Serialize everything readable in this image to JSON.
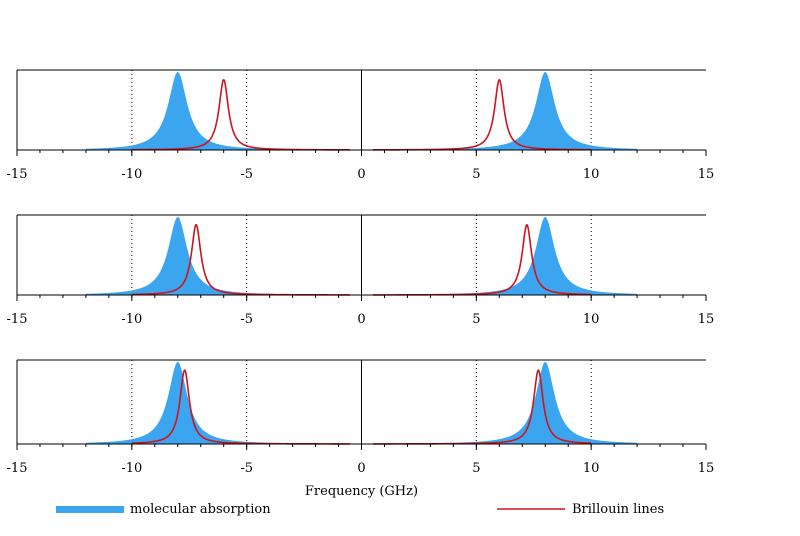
{
  "chart_data": {
    "type": "area",
    "xlabel": "Frequency (GHz)",
    "xlim": [
      -15,
      15
    ],
    "xticks": [
      -15,
      -10,
      -5,
      0,
      5,
      10,
      15
    ],
    "dotted_gridlines": [
      -10,
      -5,
      5,
      10
    ],
    "solid_gridlines": [
      0
    ],
    "legend": {
      "placement": "bottom",
      "entries": [
        {
          "label": "molecular  absorption",
          "color": "#3ba5f0",
          "style": "fill"
        },
        {
          "label": "Brillouin lines",
          "color": "#d0141e",
          "style": "line"
        }
      ]
    },
    "colors": {
      "absorption": "#3ba5f0",
      "brillouin": "#d0141e"
    },
    "panels": [
      {
        "molecular_absorption": {
          "centers": [
            -8,
            8
          ],
          "hwhm": 0.5,
          "x_range": [
            -12,
            12
          ],
          "peak": 1.0
        },
        "brillouin_lines": {
          "centers": [
            -6,
            6
          ],
          "hwhm": 0.25,
          "peak": 0.9
        }
      },
      {
        "molecular_absorption": {
          "centers": [
            -8,
            8
          ],
          "hwhm": 0.5,
          "x_range": [
            -12,
            12
          ],
          "peak": 1.0
        },
        "brillouin_lines": {
          "centers": [
            -7.2,
            7.2
          ],
          "hwhm": 0.25,
          "peak": 0.9
        }
      },
      {
        "molecular_absorption": {
          "centers": [
            -8,
            8
          ],
          "hwhm": 0.5,
          "x_range": [
            -12,
            12
          ],
          "peak": 1.0
        },
        "brillouin_lines": {
          "centers": [
            -7.7,
            7.7
          ],
          "hwhm": 0.25,
          "peak": 0.9
        }
      }
    ]
  }
}
